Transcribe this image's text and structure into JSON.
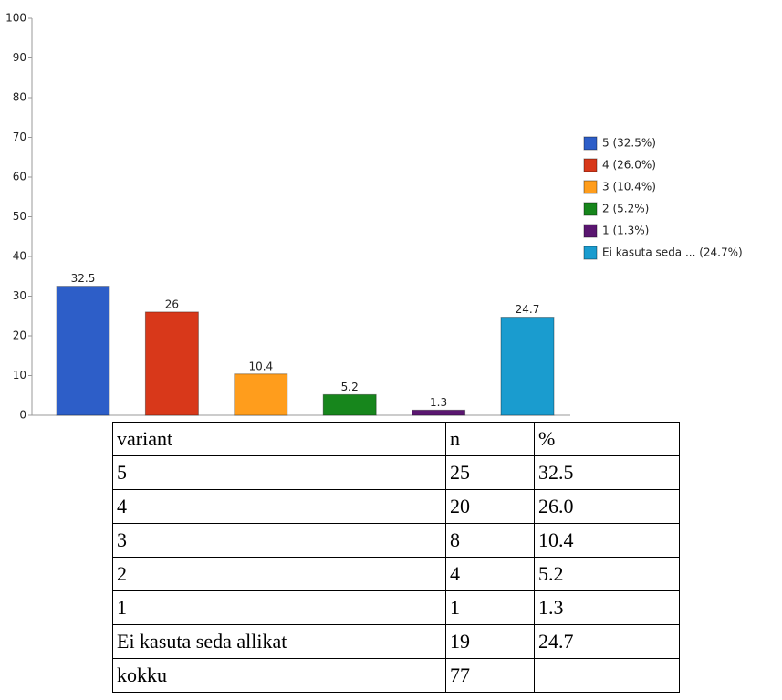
{
  "chart_data": {
    "type": "bar",
    "categories": [
      "5  (32.5%)",
      "4  (26.0%)",
      "3  (10.4%)",
      "2  (5.2%)",
      "1  (1.3%)",
      "Ei kasuta seda ... (24.7%)"
    ],
    "values": [
      32.5,
      26,
      10.4,
      5.2,
      1.3,
      24.7
    ],
    "colors": [
      "#2d5ec8",
      "#d8381a",
      "#ff9d1c",
      "#17861c",
      "#5a1670",
      "#1a9ccf"
    ],
    "ylim": [
      0,
      100
    ],
    "yticks": [
      0,
      10,
      20,
      30,
      40,
      50,
      60,
      70,
      80,
      90,
      100
    ],
    "legend": "right"
  },
  "table": {
    "header": [
      "variant",
      "n",
      "%"
    ],
    "rows": [
      [
        "5",
        "25",
        "32.5"
      ],
      [
        "4",
        "20",
        "26.0"
      ],
      [
        "3",
        "8",
        "10.4"
      ],
      [
        "2",
        "4",
        "5.2"
      ],
      [
        "1",
        "1",
        "1.3"
      ],
      [
        "Ei kasuta seda allikat",
        "19",
        "24.7"
      ],
      [
        "kokku",
        "77"
      ]
    ]
  }
}
